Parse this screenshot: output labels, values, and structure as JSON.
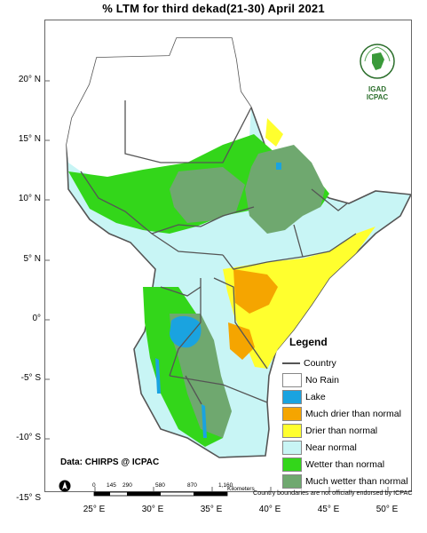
{
  "title": "% LTM  for third dekad(21-30) April 2021",
  "lat_labels": [
    "20° N",
    "15° N",
    "10° N",
    "5° N",
    "0°",
    "-5° S",
    "-10° S",
    "-15° S"
  ],
  "lon_labels": [
    "25° E",
    "30° E",
    "35° E",
    "40° E",
    "45° E",
    "50° E"
  ],
  "legend": {
    "title": "Legend",
    "country_label": "Country",
    "items": [
      {
        "label": "No Rain",
        "color": "#ffffff"
      },
      {
        "label": "Lake",
        "color": "#1aa3e0"
      },
      {
        "label": "Much drier than normal",
        "color": "#f5a500"
      },
      {
        "label": "Drier than normal",
        "color": "#ffff2e"
      },
      {
        "label": "Near normal",
        "color": "#c8f5f5"
      },
      {
        "label": "Wetter than normal",
        "color": "#33d61a"
      },
      {
        "label": "Much wetter than normal",
        "color": "#6fa86f"
      }
    ]
  },
  "data_note": "Data: CHIRPS @ ICPAC",
  "disclaimer": "Country boundaries are not officially endorsed by ICPAC",
  "scale": {
    "ticks": [
      "0",
      "145",
      "290",
      "580",
      "870",
      "1,160"
    ],
    "unit": "Kilometers"
  },
  "logo": {
    "top_text": "IGAD",
    "bottom_text": "ICPAC"
  },
  "colors": {
    "country_border": "#555555",
    "no_rain": "#ffffff",
    "lake": "#1aa3e0"
  }
}
